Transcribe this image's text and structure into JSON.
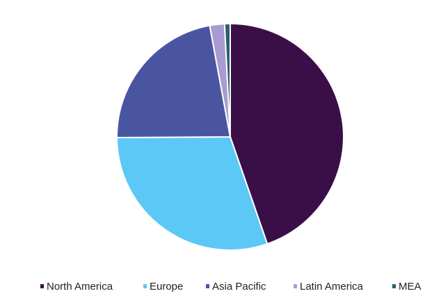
{
  "chart_data": {
    "type": "pie",
    "categories": [
      "North America",
      "Europe",
      "Asia Pacific",
      "Latin America",
      "MEA"
    ],
    "values": [
      44.7,
      30.2,
      22.2,
      2.1,
      0.8
    ],
    "colors": [
      "#3a0f48",
      "#5bc8f5",
      "#4a55a2",
      "#a99bd0",
      "#2b5f6e"
    ],
    "legend": "bottom"
  }
}
